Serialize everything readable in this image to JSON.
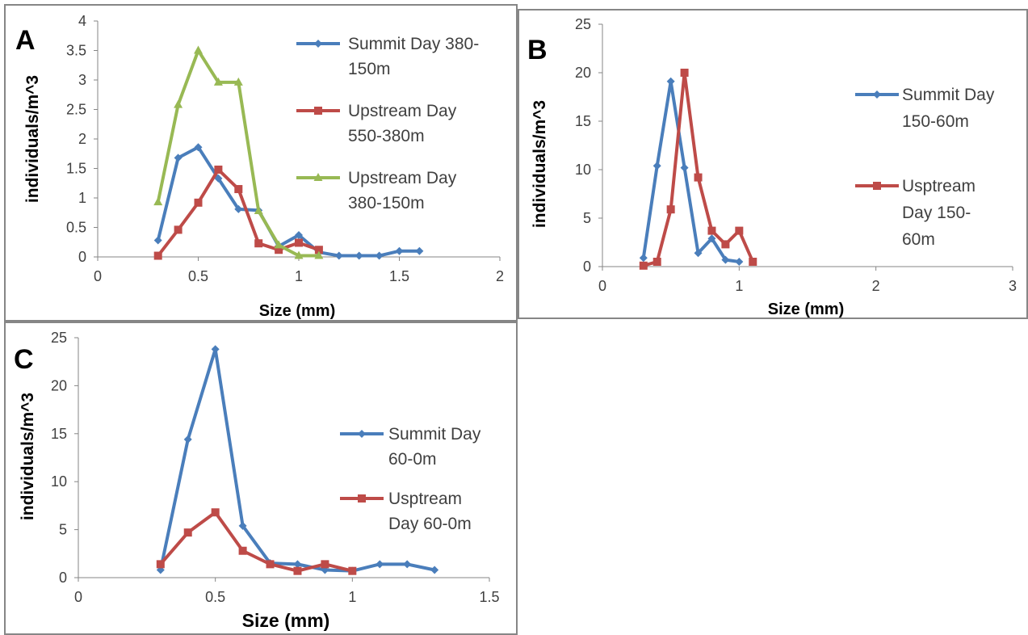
{
  "chart_data": [
    {
      "panel_label": "A",
      "type": "line",
      "xlabel": "Size (mm)",
      "ylabel": "individuals/m^3",
      "xlim": [
        0,
        2
      ],
      "ylim": [
        0,
        4
      ],
      "x_ticks": [
        "0",
        "0.5",
        "1",
        "1.5",
        "2"
      ],
      "y_ticks": [
        "0",
        "0.5",
        "1",
        "1.5",
        "2",
        "2.5",
        "3",
        "3.5",
        "4"
      ],
      "grid": false,
      "legend_position": "right",
      "series": [
        {
          "name": "Summit Day 380-150m",
          "legend_lines": [
            "Summit Day 380-",
            "150m"
          ],
          "color": "#4a7ebb",
          "marker": "diamond",
          "x": [
            0.3,
            0.4,
            0.5,
            0.6,
            0.7,
            0.8,
            0.9,
            1.0,
            1.1,
            1.2,
            1.3,
            1.4,
            1.5,
            1.6
          ],
          "y": [
            0.28,
            1.68,
            1.86,
            1.33,
            0.81,
            0.79,
            0.18,
            0.37,
            0.08,
            0.02,
            0.02,
            0.02,
            0.1,
            0.1
          ]
        },
        {
          "name": "Upstream Day 550-380m",
          "legend_lines": [
            "Upstream Day",
            "550-380m"
          ],
          "color": "#be4b48",
          "marker": "square",
          "x": [
            0.3,
            0.4,
            0.5,
            0.6,
            0.7,
            0.8,
            0.9,
            1.0,
            1.1
          ],
          "y": [
            0.02,
            0.46,
            0.92,
            1.48,
            1.15,
            0.23,
            0.12,
            0.24,
            0.12
          ]
        },
        {
          "name": "Upstream Day 380-150m",
          "legend_lines": [
            "Upstream Day",
            "380-150m"
          ],
          "color": "#98b954",
          "marker": "triangle",
          "x": [
            0.3,
            0.4,
            0.5,
            0.6,
            0.7,
            0.8,
            0.9,
            1.0,
            1.1
          ],
          "y": [
            0.93,
            2.58,
            3.5,
            2.96,
            2.96,
            0.78,
            0.2,
            0.02,
            0.02
          ]
        }
      ]
    },
    {
      "panel_label": "B",
      "type": "line",
      "xlabel": "Size (mm)",
      "ylabel": "individuals/m^3",
      "xlim": [
        0,
        3
      ],
      "ylim": [
        0,
        25
      ],
      "x_ticks": [
        "0",
        "1",
        "2",
        "3"
      ],
      "y_ticks": [
        "0",
        "5",
        "10",
        "15",
        "20",
        "25"
      ],
      "grid": false,
      "legend_position": "right",
      "series": [
        {
          "name": "Summit Day 150-60m",
          "legend_lines": [
            "Summit Day",
            "150-60m"
          ],
          "color": "#4a7ebb",
          "marker": "diamond",
          "x": [
            0.3,
            0.4,
            0.5,
            0.6,
            0.7,
            0.8,
            0.9,
            1.0
          ],
          "y": [
            0.9,
            10.4,
            19.1,
            10.2,
            1.4,
            2.9,
            0.7,
            0.5
          ]
        },
        {
          "name": "Usptream Day 150-60m",
          "legend_lines": [
            "Usptream",
            "Day 150-",
            "60m"
          ],
          "color": "#be4b48",
          "marker": "square",
          "x": [
            0.3,
            0.4,
            0.5,
            0.6,
            0.7,
            0.8,
            0.9,
            1.0,
            1.1
          ],
          "y": [
            0.1,
            0.5,
            5.9,
            20.0,
            9.2,
            3.7,
            2.3,
            3.7,
            0.5
          ]
        }
      ]
    },
    {
      "panel_label": "C",
      "type": "line",
      "xlabel": "Size (mm)",
      "ylabel": "individuals/m^3",
      "xlim": [
        0,
        1.5
      ],
      "ylim": [
        0,
        25
      ],
      "x_ticks": [
        "0",
        "0.5",
        "1",
        "1.5"
      ],
      "y_ticks": [
        "0",
        "5",
        "10",
        "15",
        "20",
        "25"
      ],
      "grid": false,
      "legend_position": "right",
      "series": [
        {
          "name": "Summit Day 60-0m",
          "legend_lines": [
            "Summit Day",
            "60-0m"
          ],
          "color": "#4a7ebb",
          "marker": "diamond",
          "x": [
            0.3,
            0.4,
            0.5,
            0.6,
            0.7,
            0.8,
            0.9,
            1.0,
            1.1,
            1.2,
            1.3
          ],
          "y": [
            0.8,
            14.4,
            23.8,
            5.4,
            1.5,
            1.4,
            0.8,
            0.7,
            1.4,
            1.4,
            0.8
          ]
        },
        {
          "name": "Usptream Day 60-0m",
          "legend_lines": [
            "Usptream",
            "Day 60-0m"
          ],
          "color": "#be4b48",
          "marker": "square",
          "x": [
            0.3,
            0.4,
            0.5,
            0.6,
            0.7,
            0.8,
            0.9,
            1.0
          ],
          "y": [
            1.4,
            4.7,
            6.8,
            2.8,
            1.4,
            0.7,
            1.4,
            0.7
          ]
        }
      ]
    }
  ]
}
